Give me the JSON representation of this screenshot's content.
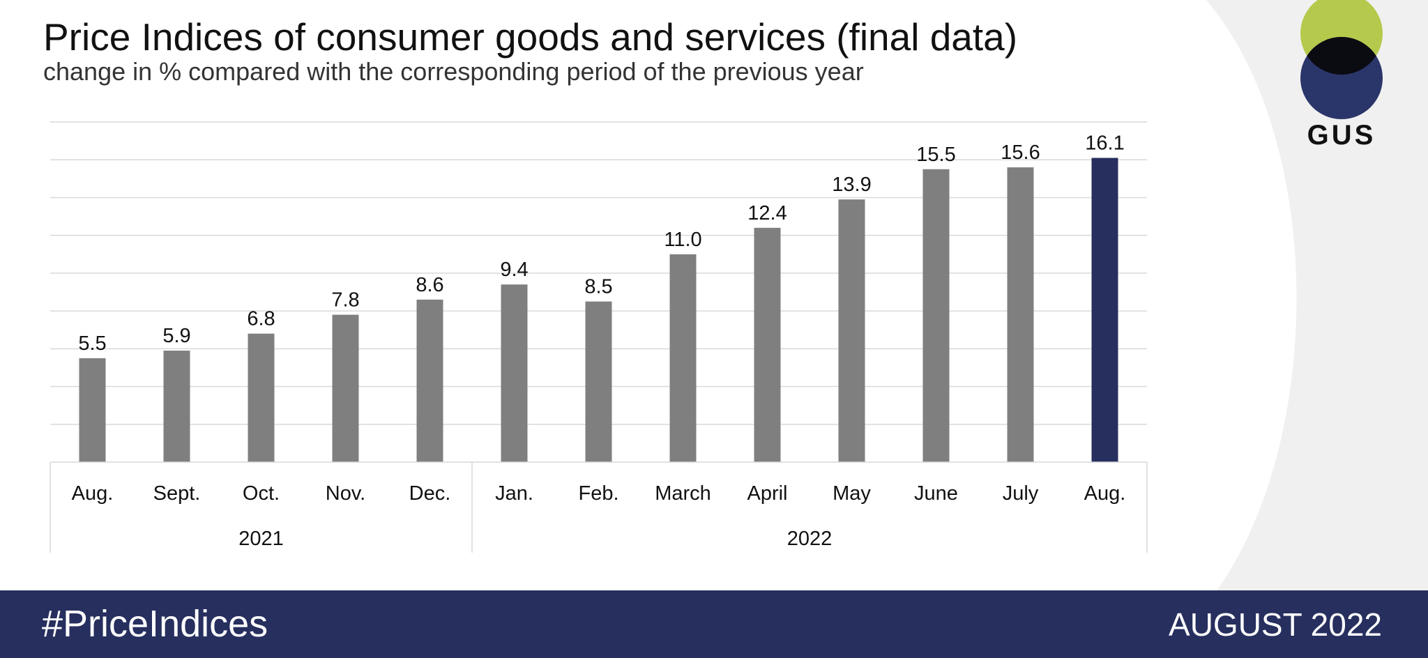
{
  "header": {
    "title": "Price Indices of consumer goods and services (final data)",
    "subtitle": "change in % compared with the corresponding period of the previous year"
  },
  "logo": {
    "text": "GUS",
    "colors": {
      "top": "#b5c94c",
      "overlap": "#0b0b12",
      "bottom": "#2a3569"
    }
  },
  "footer": {
    "hashtag": "#PriceIndices",
    "period": "AUGUST 2022"
  },
  "colors": {
    "bar": "#7f7f7f",
    "bar_highlight": "#262f5e",
    "grid": "#d9d9d9",
    "background_curve": "#f0f0f0",
    "footer": "#262f5e"
  },
  "chart_data": {
    "type": "bar",
    "title": "Price Indices of consumer goods and services (final data)",
    "subtitle": "change in % compared with the corresponding period of the previous year",
    "categories": [
      "Aug.",
      "Sept.",
      "Oct.",
      "Nov.",
      "Dec.",
      "Jan.",
      "Feb.",
      "March",
      "April",
      "May",
      "June",
      "July",
      "Aug."
    ],
    "category_groups": [
      {
        "label": "2021",
        "count": 5
      },
      {
        "label": "2022",
        "count": 8
      }
    ],
    "values": [
      5.5,
      5.9,
      6.8,
      7.8,
      8.6,
      9.4,
      8.5,
      11.0,
      12.4,
      13.9,
      15.5,
      15.6,
      16.1
    ],
    "data_labels": [
      "5.5",
      "5.9",
      "6.8",
      "7.8",
      "8.6",
      "9.4",
      "8.5",
      "11.0",
      "12.4",
      "13.9",
      "15.5",
      "15.6",
      "16.1"
    ],
    "highlight_index": 12,
    "ylim": [
      0,
      18
    ],
    "y_gridlines": [
      2,
      4,
      6,
      8,
      10,
      12,
      14,
      16,
      18
    ],
    "grid": true,
    "legend": "none",
    "xlabel": "",
    "ylabel": ""
  }
}
